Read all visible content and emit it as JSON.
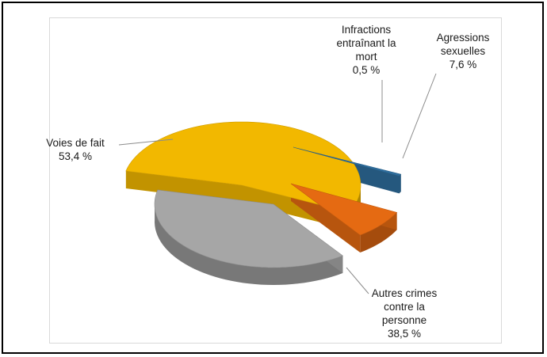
{
  "chart_data": {
    "type": "pie",
    "title": "",
    "exploded": true,
    "three_d": true,
    "unit_suffix": " %",
    "slices": [
      {
        "label": "Voies de fait",
        "label_lines": [
          "Voies de fait"
        ],
        "value": 53.4,
        "value_text": "53,4 %",
        "color": "#f2b800"
      },
      {
        "label": "Infractions entraînant la mort",
        "label_lines": [
          "Infractions",
          "entraînant  la",
          "mort"
        ],
        "value": 0.5,
        "value_text": "0,5 %",
        "color": "#2e6e9e"
      },
      {
        "label": "Agressions sexuelles",
        "label_lines": [
          "Agressions",
          "sexuelles"
        ],
        "value": 7.6,
        "value_text": "7,6 %",
        "color": "#e56a12"
      },
      {
        "label": "Autres crimes contre la personne",
        "label_lines": [
          "Autres crimes",
          "contre  la",
          "personne"
        ],
        "value": 38.5,
        "value_text": "38,5 %",
        "color": "#a6a6a6"
      }
    ]
  }
}
